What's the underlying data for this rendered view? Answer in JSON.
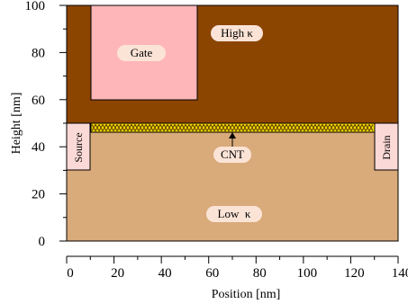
{
  "colors": {
    "high_k": "#8b4500",
    "low_k": "#d9aa7a",
    "gate": "#ffb6b8",
    "cnt": "#f2d800",
    "cnt_stroke": "#5a3a00",
    "label_bg": "#fbe3d6",
    "contact": "#fbd9d6"
  },
  "regions": {
    "high_k": {
      "label": "High κ",
      "x": [
        0,
        140
      ],
      "y": [
        50,
        100
      ]
    },
    "low_k": {
      "label": "Low  κ",
      "x": [
        0,
        140
      ],
      "y": [
        0,
        50
      ]
    },
    "gate": {
      "label": "Gate",
      "x": [
        10,
        55
      ],
      "y": [
        60,
        100
      ]
    },
    "cnt": {
      "label": "CNT",
      "x": [
        10,
        130
      ],
      "y": [
        46.5,
        50
      ]
    },
    "source": {
      "label": "Source",
      "x": [
        0,
        10
      ],
      "y": [
        30,
        50
      ]
    },
    "drain": {
      "label": "Drain",
      "x": [
        130,
        140
      ],
      "y": [
        30,
        50
      ]
    }
  },
  "axes": {
    "x": {
      "label": "Position [nm]",
      "range": [
        0,
        140
      ],
      "ticks": [
        "0",
        "20",
        "40",
        "60",
        "80",
        "100",
        "120",
        "140"
      ]
    },
    "y": {
      "label": "Height [nm]",
      "range": [
        0,
        100
      ],
      "ticks": [
        "0",
        "20",
        "40",
        "60",
        "80",
        "100"
      ]
    }
  }
}
